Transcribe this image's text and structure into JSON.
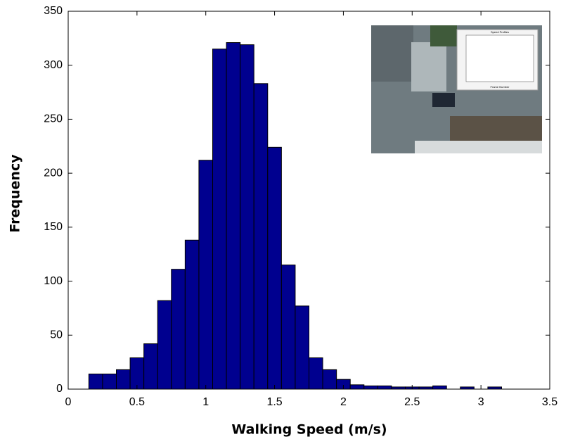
{
  "chart_data": {
    "type": "histogram",
    "xlabel": "Walking Speed (m/s)",
    "ylabel": "Frequency",
    "bins": [
      0.15,
      0.25,
      0.35,
      0.45,
      0.55,
      0.65,
      0.75,
      0.85,
      0.95,
      1.05,
      1.15,
      1.25,
      1.35,
      1.45,
      1.55,
      1.65,
      1.75,
      1.85,
      1.95,
      2.05,
      2.15,
      2.25,
      2.35,
      2.45,
      2.55,
      2.65,
      2.75,
      2.85,
      2.95,
      3.05,
      3.15
    ],
    "values": [
      14,
      14,
      18,
      29,
      42,
      82,
      111,
      138,
      212,
      315,
      321,
      319,
      283,
      224,
      115,
      77,
      29,
      18,
      9,
      4,
      3,
      3,
      2,
      2,
      2,
      3,
      0,
      2,
      0,
      2
    ],
    "color": "#00008f",
    "xlim": [
      0,
      3.5
    ],
    "xticks": [
      0,
      0.5,
      1,
      1.5,
      2,
      2.5,
      3,
      3.5
    ],
    "ylim": [
      0,
      350
    ],
    "yticks": [
      0,
      50,
      100,
      150,
      200,
      250,
      300,
      350
    ]
  },
  "inset": {
    "title": "Speed Profiles",
    "xlabel": "Frame Number"
  }
}
